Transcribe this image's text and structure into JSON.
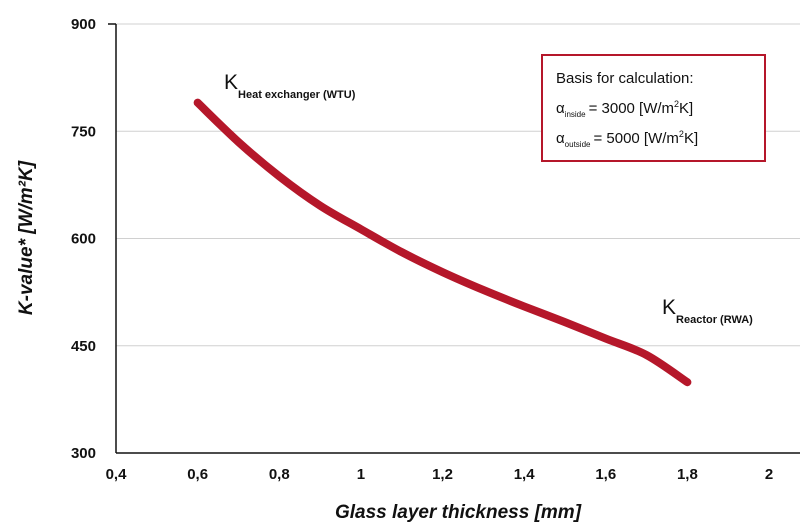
{
  "chart_data": {
    "type": "line",
    "xlabel": "Glass layer thickness [mm]",
    "ylabel": "K-value* [W/m²K]",
    "xlim": [
      0.4,
      2.0
    ],
    "ylim": [
      300,
      900
    ],
    "x_ticks": [
      "0,4",
      "0,6",
      "0,8",
      "1",
      "1,2",
      "1,4",
      "1,6",
      "1,8",
      "2"
    ],
    "y_ticks": [
      "300",
      "450",
      "600",
      "750",
      "900"
    ],
    "grid": "horizontal",
    "series_color": "#b5172a",
    "series": [
      {
        "x": [
          0.6,
          0.7,
          0.8,
          0.9,
          1.0,
          1.1,
          1.2,
          1.3,
          1.4,
          1.5,
          1.6,
          1.7,
          1.8
        ],
        "values": [
          790,
          735,
          687,
          646,
          613,
          581,
          553,
          528,
          505,
          483,
          460,
          437,
          399
        ]
      }
    ],
    "annotations": [
      {
        "k": "K",
        "sub": "Heat exchanger (WTU)"
      },
      {
        "k": "K",
        "sub": "Reactor (RWA)"
      }
    ]
  },
  "note": {
    "title": "Basis for calculation:",
    "line1": {
      "symbol": "α",
      "sub": "inside",
      "text": "= 3000 [W/m",
      "sup": "2",
      "end": "K]"
    },
    "line2": {
      "symbol": "α",
      "sub": "outside",
      "text": "= 5000 [W/m",
      "sup": "2",
      "end": "K]"
    },
    "border_color": "#b5172a"
  }
}
